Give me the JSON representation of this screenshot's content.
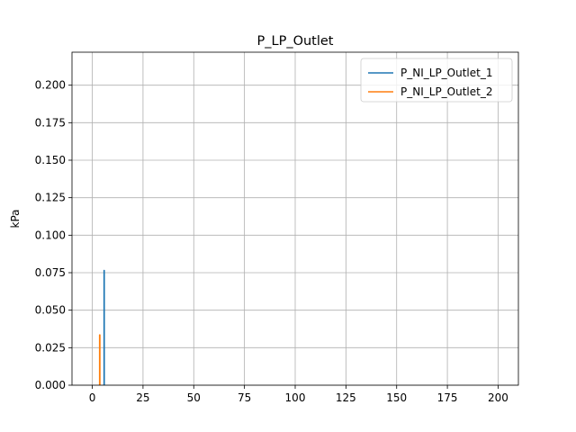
{
  "chart_data": {
    "type": "line",
    "title": "P_LP_Outlet",
    "xlabel": "",
    "ylabel": "kPa",
    "xlim": [
      -10,
      210
    ],
    "ylim": [
      0,
      0.222
    ],
    "xticks": [
      0,
      25,
      50,
      75,
      100,
      125,
      150,
      175,
      200
    ],
    "yticks": [
      0.0,
      0.025,
      0.05,
      0.075,
      0.1,
      0.125,
      0.15,
      0.175,
      0.2
    ],
    "ytick_labels": [
      "0.000",
      "0.025",
      "0.050",
      "0.075",
      "0.100",
      "0.125",
      "0.150",
      "0.175",
      "0.200"
    ],
    "grid": true,
    "legend_position": "top-right",
    "series": [
      {
        "name": "P_NI_LP_Outlet_1",
        "color": "#1f77b4",
        "x": [
          5.8,
          5.8,
          5.9,
          5.9
        ],
        "y": [
          0.0,
          0.0765,
          0.0765,
          0.0
        ]
      },
      {
        "name": "P_NI_LP_Outlet_2",
        "color": "#ff7f0e",
        "x": [
          3.6,
          3.6,
          3.75,
          3.75
        ],
        "y": [
          0.0,
          0.0335,
          0.0335,
          0.0
        ]
      }
    ]
  }
}
